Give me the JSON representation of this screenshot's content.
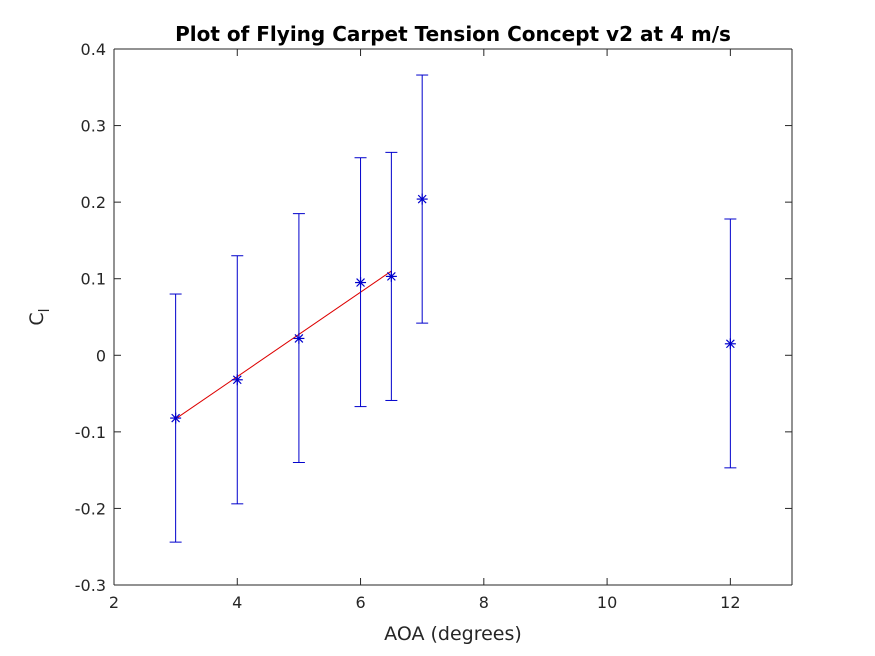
{
  "chart_data": {
    "type": "scatter",
    "title": "Plot of Flying Carpet Tension Concept v2 at 4 m/s",
    "xlabel": "AOA (degrees)",
    "ylabel_main": "C",
    "ylabel_sub": "l",
    "xlim": [
      2,
      13
    ],
    "ylim": [
      -0.3,
      0.4
    ],
    "xticks": [
      2,
      4,
      6,
      8,
      10,
      12
    ],
    "yticks": [
      -0.3,
      -0.2,
      -0.1,
      0,
      0.1,
      0.2,
      0.3,
      0.4
    ],
    "xtick_labels": [
      "2",
      "4",
      "6",
      "8",
      "10",
      "12"
    ],
    "ytick_labels": [
      "-0.3",
      "-0.2",
      "-0.1",
      "0",
      "0.1",
      "0.2",
      "0.3",
      "0.4"
    ],
    "grid": false,
    "legend": "none",
    "series": [
      {
        "marker": "asterisk",
        "color": "#0000cc",
        "x": [
          3,
          4,
          5,
          6,
          6.5,
          7,
          12
        ],
        "y": [
          -0.082,
          -0.032,
          0.022,
          0.095,
          0.103,
          0.204,
          0.015
        ],
        "err_lower": [
          -0.244,
          -0.194,
          -0.14,
          -0.067,
          -0.059,
          0.042,
          -0.147
        ],
        "err_upper": [
          0.08,
          0.13,
          0.185,
          0.258,
          0.265,
          0.366,
          0.178
        ]
      }
    ],
    "fit_line": {
      "color": "#dd0000",
      "x": [
        3,
        6.5
      ],
      "y": [
        -0.083,
        0.11
      ]
    }
  }
}
